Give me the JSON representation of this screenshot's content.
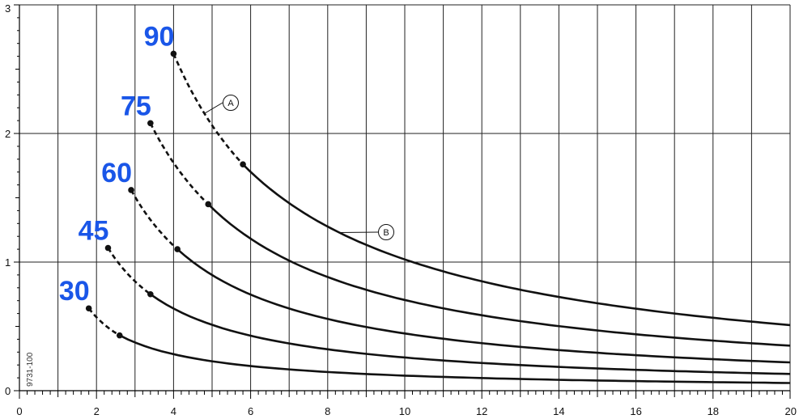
{
  "chart_data": {
    "type": "line",
    "xlim": [
      0,
      20
    ],
    "ylim": [
      0,
      3
    ],
    "x_ticks": [
      "0",
      "2",
      "4",
      "6",
      "8",
      "10",
      "12",
      "14",
      "16",
      "18",
      "20"
    ],
    "y_ticks": [
      "0",
      "1",
      "2",
      "3"
    ],
    "grid": true,
    "label_color": "#1a56e8",
    "line_color": "#111111",
    "side_code": "9731-100",
    "callouts": [
      {
        "letter": "A",
        "points_to": "dashed segment"
      },
      {
        "letter": "B",
        "points_to": "solid segment"
      }
    ],
    "series": [
      {
        "name": "30",
        "dashed_from_x": 1.8,
        "dashed_from_y": 0.64,
        "solid_from_x": 2.6,
        "solid_from_y": 0.43,
        "end_y": 0.06
      },
      {
        "name": "45",
        "dashed_from_x": 2.3,
        "dashed_from_y": 1.11,
        "solid_from_x": 3.4,
        "solid_from_y": 0.75,
        "end_y": 0.13
      },
      {
        "name": "60",
        "dashed_from_x": 2.9,
        "dashed_from_y": 1.56,
        "solid_from_x": 4.1,
        "solid_from_y": 1.1,
        "end_y": 0.22
      },
      {
        "name": "75",
        "dashed_from_x": 3.4,
        "dashed_from_y": 2.08,
        "solid_from_x": 4.9,
        "solid_from_y": 1.45,
        "end_y": 0.35
      },
      {
        "name": "90",
        "dashed_from_x": 4.0,
        "dashed_from_y": 2.62,
        "solid_from_x": 5.8,
        "solid_from_y": 1.76,
        "end_y": 0.51
      }
    ]
  }
}
